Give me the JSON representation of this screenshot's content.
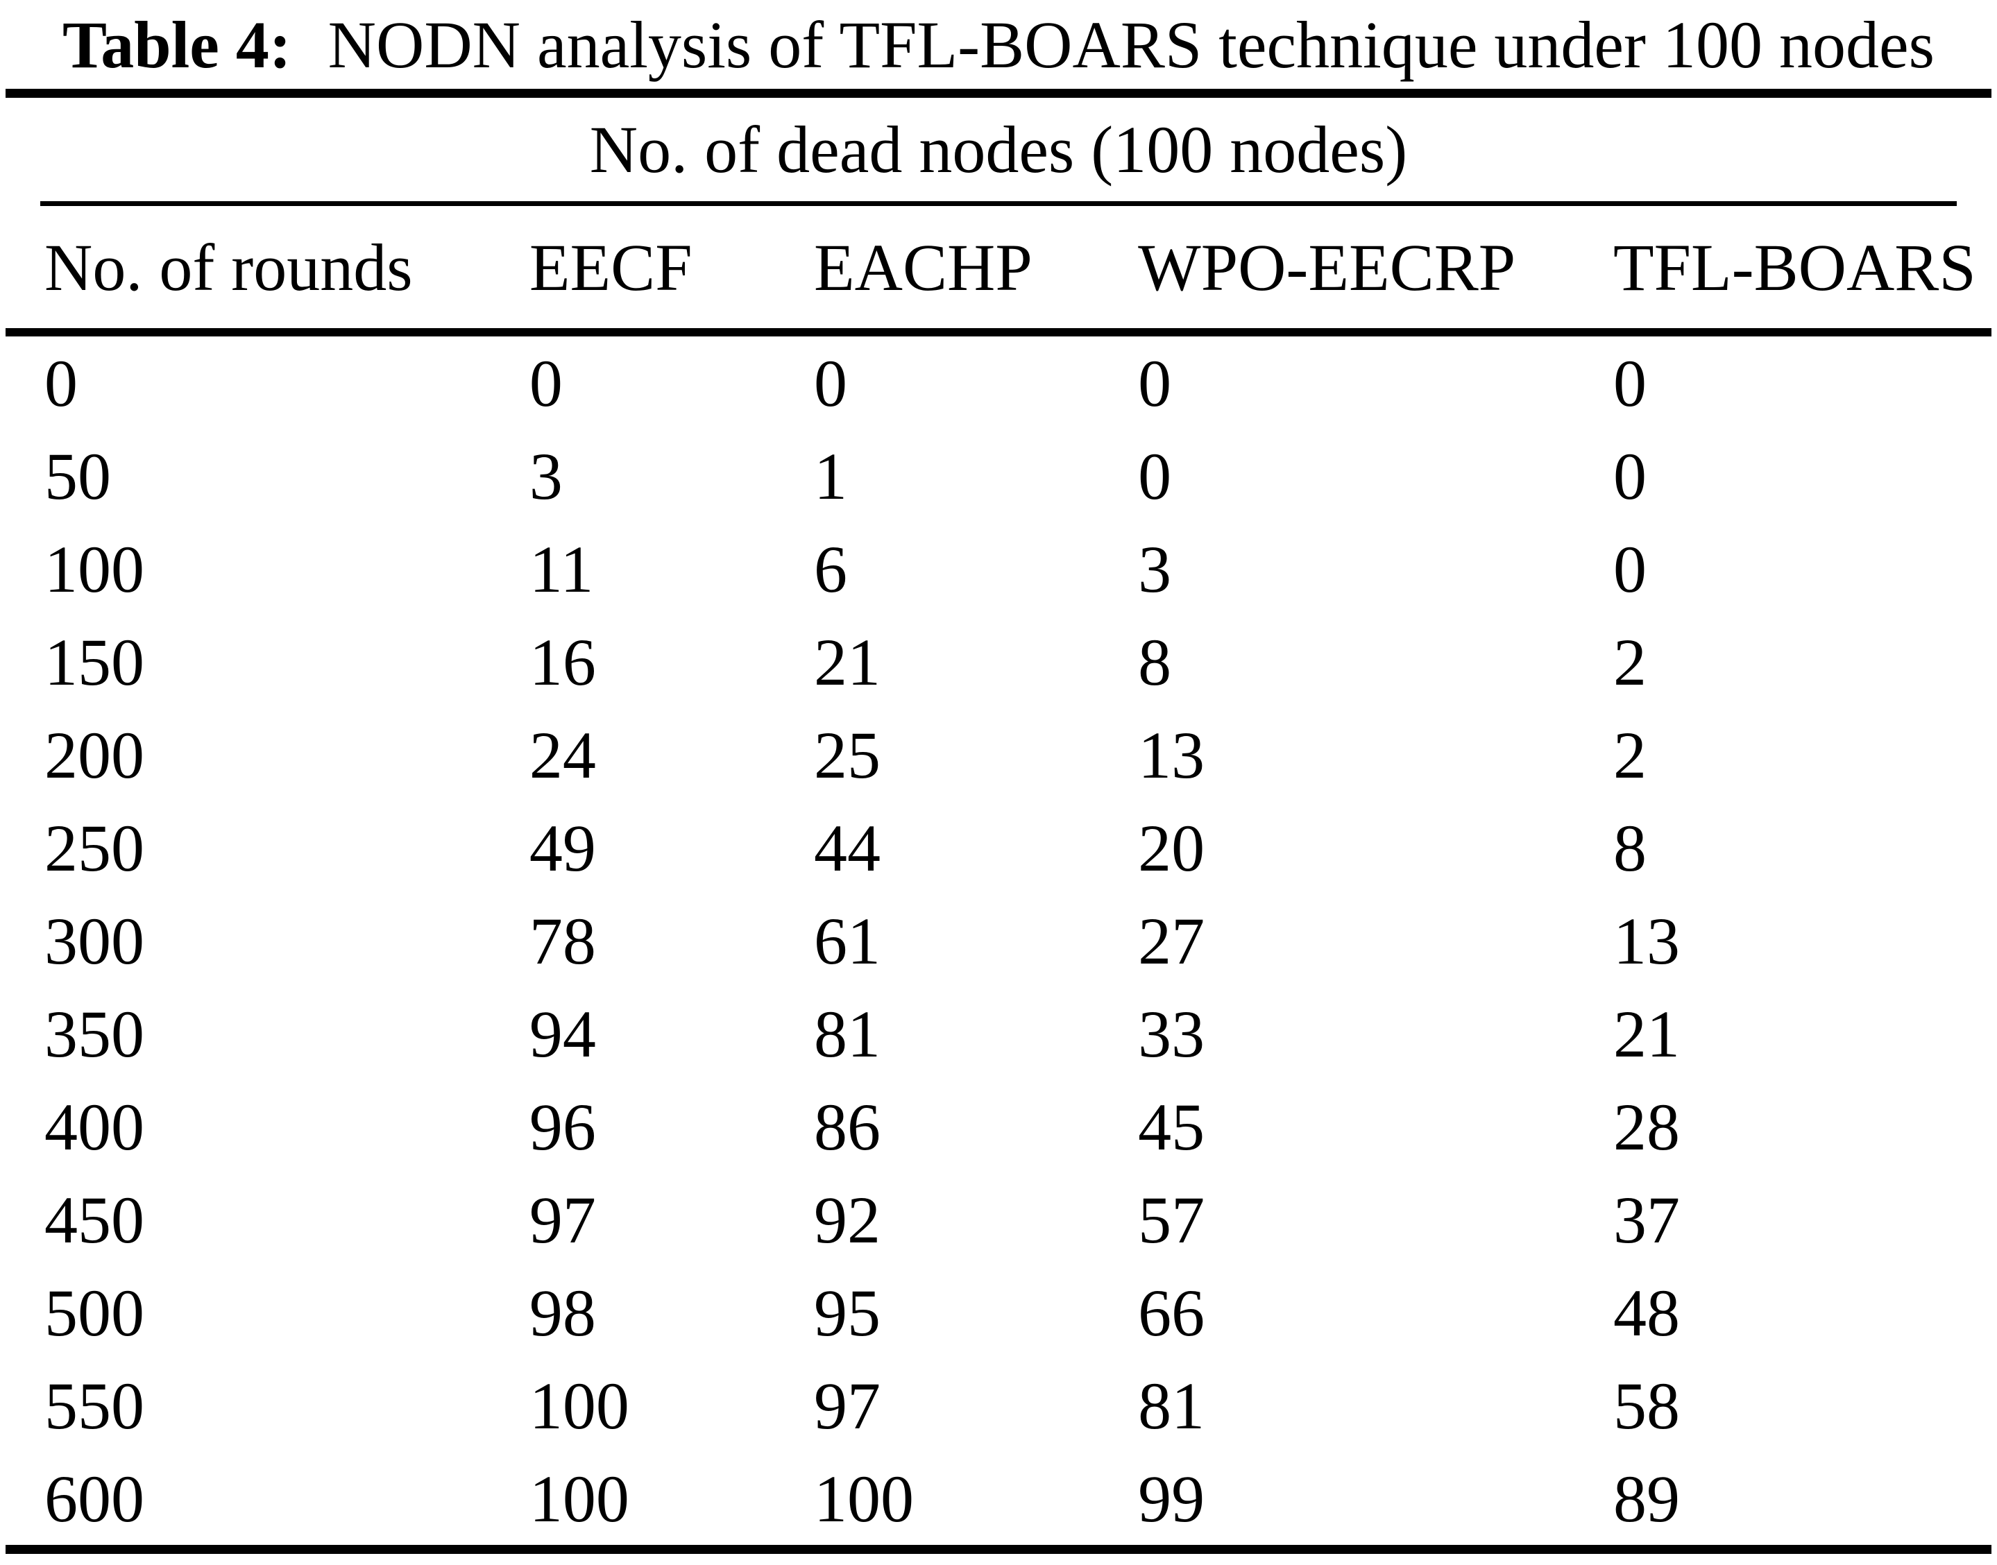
{
  "caption": {
    "label": "Table 4:",
    "text": "NODN analysis of TFL-BOARS technique under 100 nodes"
  },
  "table": {
    "span_header": "No. of dead nodes (100 nodes)",
    "columns": [
      "No. of rounds",
      "EECF",
      "EACHP",
      "WPO-EECRP",
      "TFL-BOARS"
    ],
    "rows": [
      {
        "cells": [
          "0",
          "0",
          "0",
          "0",
          "0"
        ]
      },
      {
        "cells": [
          "50",
          "3",
          "1",
          "0",
          "0"
        ]
      },
      {
        "cells": [
          "100",
          "11",
          "6",
          "3",
          "0"
        ]
      },
      {
        "cells": [
          "150",
          "16",
          "21",
          "8",
          "2"
        ]
      },
      {
        "cells": [
          "200",
          "24",
          "25",
          "13",
          "2"
        ]
      },
      {
        "cells": [
          "250",
          "49",
          "44",
          "20",
          "8"
        ]
      },
      {
        "cells": [
          "300",
          "78",
          "61",
          "27",
          "13"
        ]
      },
      {
        "cells": [
          "350",
          "94",
          "81",
          "33",
          "21"
        ]
      },
      {
        "cells": [
          "400",
          "96",
          "86",
          "45",
          "28"
        ]
      },
      {
        "cells": [
          "450",
          "97",
          "92",
          "57",
          "37"
        ]
      },
      {
        "cells": [
          "500",
          "98",
          "95",
          "66",
          "48"
        ]
      },
      {
        "cells": [
          "550",
          "100",
          "97",
          "81",
          "58"
        ]
      },
      {
        "cells": [
          "600",
          "100",
          "100",
          "99",
          "89"
        ]
      }
    ]
  },
  "chart_data": {
    "type": "table",
    "title": "Table 4: NODN analysis of TFL-BOARS technique under 100 nodes",
    "group_header": "No. of dead nodes (100 nodes)",
    "columns": [
      "No. of rounds",
      "EECF",
      "EACHP",
      "WPO-EECRP",
      "TFL-BOARS"
    ],
    "x": [
      0,
      50,
      100,
      150,
      200,
      250,
      300,
      350,
      400,
      450,
      500,
      550,
      600
    ],
    "series": [
      {
        "name": "EECF",
        "values": [
          0,
          3,
          11,
          16,
          24,
          49,
          78,
          94,
          96,
          97,
          98,
          100,
          100
        ]
      },
      {
        "name": "EACHP",
        "values": [
          0,
          1,
          6,
          21,
          25,
          44,
          61,
          81,
          86,
          92,
          95,
          97,
          100
        ]
      },
      {
        "name": "WPO-EECRP",
        "values": [
          0,
          0,
          3,
          8,
          13,
          20,
          27,
          33,
          45,
          57,
          66,
          81,
          99
        ]
      },
      {
        "name": "TFL-BOARS",
        "values": [
          0,
          0,
          0,
          2,
          2,
          8,
          13,
          21,
          28,
          37,
          48,
          58,
          89
        ]
      }
    ]
  },
  "colors": {
    "text": "#000000",
    "rule": "#000000",
    "background": "#ffffff"
  }
}
